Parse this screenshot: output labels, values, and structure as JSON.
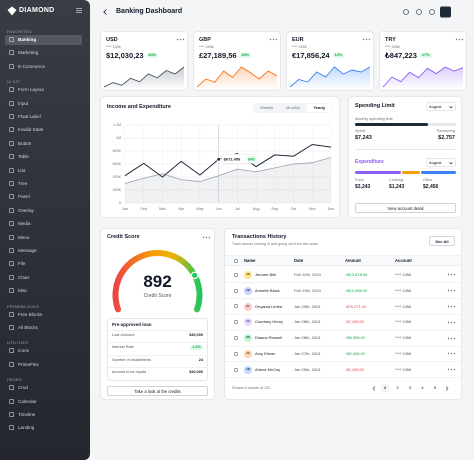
{
  "sidebar": {
    "brand": "DIAMOND",
    "sections": [
      {
        "title": "FAVORITES",
        "items": [
          "Banking",
          "Marketing",
          "E-Commerce"
        ]
      },
      {
        "title": "UI KIT",
        "items": [
          "Form Layout",
          "Input",
          "Float Label",
          "Invalid State",
          "Button",
          "Table",
          "List",
          "Tree",
          "Panel",
          "Overlay",
          "Media",
          "Menu",
          "Message",
          "File",
          "Chart",
          "Misc"
        ]
      },
      {
        "title": "PRIMEBLOCKS",
        "items": [
          "Free Blocks",
          "All Blocks"
        ]
      },
      {
        "title": "UTILITIES",
        "items": [
          "Icons",
          "PrimeFlex"
        ]
      },
      {
        "title": "PAGES",
        "items": [
          "Crud",
          "Calendar",
          "Timeline",
          "Landing"
        ]
      }
    ]
  },
  "header": {
    "title": "Banking Dashboard"
  },
  "cards": [
    {
      "currency": "USD",
      "number": "**** 2456",
      "value": "$12,030,23",
      "badge": "84%",
      "color": "#4b5563",
      "trend": [
        3,
        4,
        3.4,
        5,
        4.2,
        6,
        5.1,
        6.8,
        6,
        7.6
      ]
    },
    {
      "currency": "GBP",
      "number": "**** 2456",
      "value": "£27,189,56",
      "badge": "33%",
      "color": "#f97316",
      "trend": [
        4,
        5,
        4.6,
        6,
        5.2,
        6.5,
        5.8,
        5,
        6,
        5.4
      ]
    },
    {
      "currency": "EUR",
      "number": "**** 2456",
      "value": "€17,856,24",
      "badge": "12%",
      "color": "#3b82f6",
      "trend": [
        3,
        4.5,
        4,
        6,
        5,
        7,
        5.6,
        6.4,
        6,
        7
      ]
    },
    {
      "currency": "TRY",
      "number": "**** 2456",
      "value": "₺847,223",
      "badge": "17%",
      "color": "#8b5cf6",
      "trend": [
        4,
        5.5,
        4.8,
        6.2,
        5.4,
        6.8,
        6,
        7,
        6.4,
        6.9
      ]
    }
  ],
  "chart_data": {
    "type": "line",
    "title": "Income and Expenditure",
    "tabs": [
      "Weekly",
      "Monthly",
      "Yearly"
    ],
    "categories": [
      "Jan",
      "Feb",
      "Mar",
      "Apr",
      "May",
      "Jun",
      "Jul",
      "Aug",
      "Sep",
      "Oct",
      "Nov",
      "Dec"
    ],
    "series": [
      {
        "color": "#1f2937",
        "values": [
          420000,
          610000,
          400000,
          640000,
          430000,
          672456,
          760000,
          560000,
          740000,
          720000,
          900000,
          860000
        ],
        "value_labels": [
          null,
          null,
          null,
          null,
          null,
          "$672,456",
          null,
          null,
          null,
          null,
          null,
          null
        ]
      },
      {
        "color": "#9ca3af",
        "values": [
          300000,
          380000,
          450000,
          360000,
          330000,
          420000,
          520000,
          480000,
          540000,
          600000,
          620000,
          700000
        ]
      }
    ],
    "tooltip_badge": "84%",
    "ylim": [
      0,
      1200000
    ],
    "yticks": [
      0,
      {
        "value": 200000,
        "label": "200K"
      },
      {
        "value": 400000,
        "label": "400K"
      },
      {
        "value": 600000,
        "label": "600K"
      },
      {
        "value": 800000,
        "label": "800K"
      },
      {
        "value": 1000000,
        "label": "1M"
      },
      {
        "value": 1200000,
        "label": "1.2M"
      }
    ],
    "grid": true
  },
  "spending": {
    "title": "Spending Limit",
    "period": "August",
    "limit_label": "Monthly spending limit",
    "spent_label": "Spent",
    "spent": "$7,243",
    "remaining_label": "Remaining",
    "remaining": "$2,757",
    "expenditure": {
      "title": "Expenditure",
      "period": "August",
      "items": [
        {
          "label": "Food",
          "value": "$3,243",
          "color": "#8b5cf6"
        },
        {
          "label": "Clothing",
          "value": "$1,243",
          "color": "#f59e0b"
        },
        {
          "label": "Other",
          "value": "$2,456",
          "color": "#3b82f6"
        }
      ]
    },
    "button": "View account detail"
  },
  "credit": {
    "title": "Credit Score",
    "score": 892,
    "score_label": "Credit Score",
    "loan": {
      "title": "Pre-approved loan",
      "rows": [
        [
          "Loan Amount",
          "$40,000"
        ],
        [
          "Interest Rate",
          "1.2%"
        ],
        [
          "Number of Installments",
          "24"
        ],
        [
          "Amount to be repaid",
          "$40,000"
        ]
      ]
    },
    "button": "Take a look at the credits"
  },
  "transactions": {
    "title": "Transactions History",
    "subtitle": "Track money coming in and going out from the cards",
    "button": "See All",
    "columns": [
      "Name",
      "Date",
      "Amount",
      "Account"
    ],
    "rows": [
      {
        "initials": "JB",
        "name": "Jerome Bell",
        "date": "Feb 12th, 2024",
        "amount": "+$13,878.56",
        "account": "**** 2456"
      },
      {
        "initials": "AB",
        "name": "Annette Black",
        "date": "Feb 13th, 2024",
        "amount": "+$12,456.00",
        "account": "**** 2456"
      },
      {
        "initials": "OL",
        "name": "Onyama Limba",
        "date": "Jan 29th, 2024",
        "amount": "-$76,271.00",
        "account": "**** 2456"
      },
      {
        "initials": "CH",
        "name": "Courtney Henry",
        "date": "Jan 28th, 2024",
        "amount": "-$7,456.00",
        "account": "**** 2456"
      },
      {
        "initials": "DR",
        "name": "Dianne Russell",
        "date": "Jan 28th, 2024",
        "amount": "+$8,356.00",
        "account": "**** 2456"
      },
      {
        "initials": "AE",
        "name": "Amy Elsner",
        "date": "Jan 27th, 2024",
        "amount": "+$2,456.00",
        "account": "**** 2456"
      },
      {
        "initials": "AM",
        "name": "Arlene McCoy",
        "date": "Jan 25th, 2024",
        "amount": "-$5,456.00",
        "account": "**** 2456"
      }
    ],
    "footer": "Shows 5 results of 120",
    "pages": [
      1,
      2,
      3,
      4,
      5
    ]
  }
}
